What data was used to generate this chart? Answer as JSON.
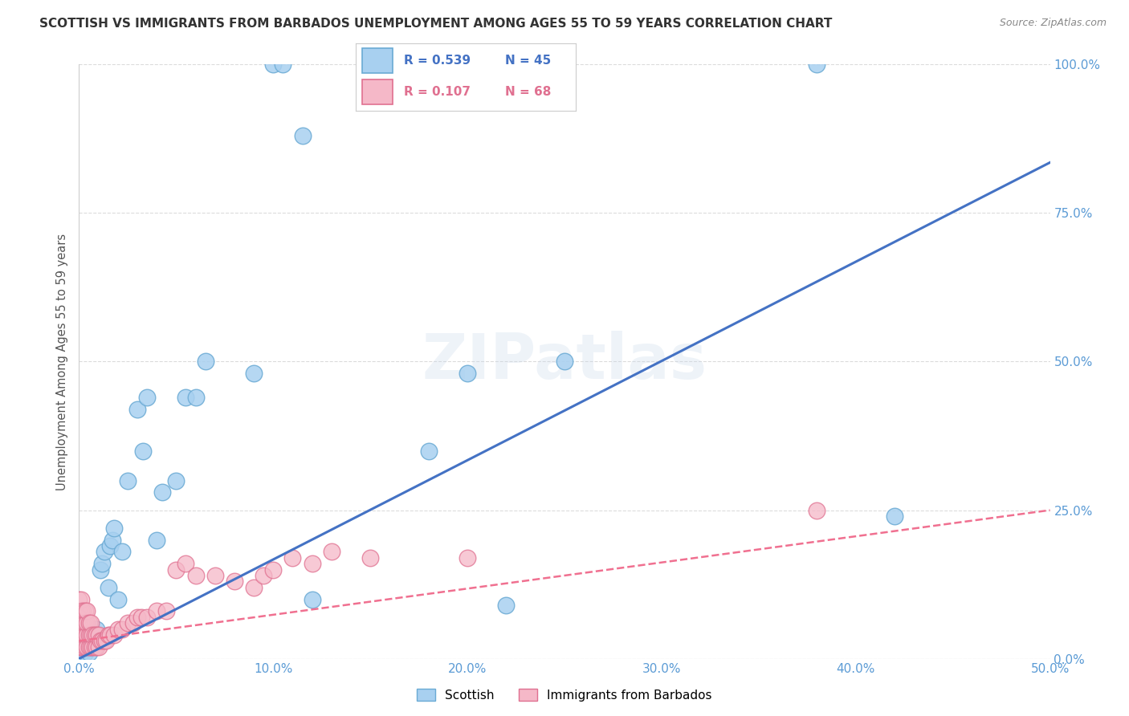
{
  "title": "SCOTTISH VS IMMIGRANTS FROM BARBADOS UNEMPLOYMENT AMONG AGES 55 TO 59 YEARS CORRELATION CHART",
  "source": "Source: ZipAtlas.com",
  "ylabel": "Unemployment Among Ages 55 to 59 years",
  "xlim": [
    0.0,
    0.5
  ],
  "ylim": [
    0.0,
    1.0
  ],
  "xticks": [
    0.0,
    0.1,
    0.2,
    0.3,
    0.4,
    0.5
  ],
  "xtick_labels": [
    "0.0%",
    "10.0%",
    "20.0%",
    "30.0%",
    "40.0%",
    "50.0%"
  ],
  "yticks": [
    0.0,
    0.25,
    0.5,
    0.75,
    1.0
  ],
  "ytick_labels": [
    "0.0%",
    "25.0%",
    "50.0%",
    "75.0%",
    "100.0%"
  ],
  "scottish_color": "#a8d0f0",
  "scottish_edge_color": "#6aaad4",
  "barbados_color": "#f5b8c8",
  "barbados_edge_color": "#e07090",
  "scottish_line_color": "#4472C4",
  "barbados_line_color": "#f07090",
  "R_scottish": 0.539,
  "N_scottish": 45,
  "R_barbados": 0.107,
  "N_barbados": 68,
  "scottish_x": [
    0.001,
    0.001,
    0.002,
    0.002,
    0.003,
    0.003,
    0.004,
    0.004,
    0.005,
    0.005,
    0.006,
    0.007,
    0.008,
    0.009,
    0.01,
    0.011,
    0.012,
    0.013,
    0.015,
    0.016,
    0.017,
    0.018,
    0.02,
    0.022,
    0.025,
    0.03,
    0.033,
    0.035,
    0.04,
    0.043,
    0.05,
    0.055,
    0.06,
    0.065,
    0.09,
    0.1,
    0.105,
    0.115,
    0.12,
    0.18,
    0.2,
    0.22,
    0.25,
    0.38,
    0.42
  ],
  "scottish_y": [
    0.01,
    0.02,
    0.02,
    0.04,
    0.01,
    0.03,
    0.02,
    0.04,
    0.01,
    0.03,
    0.02,
    0.03,
    0.04,
    0.05,
    0.03,
    0.15,
    0.16,
    0.18,
    0.12,
    0.19,
    0.2,
    0.22,
    0.1,
    0.18,
    0.3,
    0.42,
    0.35,
    0.44,
    0.2,
    0.28,
    0.3,
    0.44,
    0.44,
    0.5,
    0.48,
    1.0,
    1.0,
    0.88,
    0.1,
    0.35,
    0.48,
    0.09,
    0.5,
    1.0,
    0.24
  ],
  "barbados_x": [
    0.0,
    0.0,
    0.0,
    0.0,
    0.0,
    0.0,
    0.0,
    0.001,
    0.001,
    0.001,
    0.001,
    0.001,
    0.002,
    0.002,
    0.002,
    0.002,
    0.003,
    0.003,
    0.003,
    0.003,
    0.004,
    0.004,
    0.004,
    0.004,
    0.005,
    0.005,
    0.005,
    0.006,
    0.006,
    0.006,
    0.007,
    0.007,
    0.008,
    0.008,
    0.009,
    0.009,
    0.01,
    0.01,
    0.011,
    0.012,
    0.013,
    0.014,
    0.015,
    0.016,
    0.018,
    0.02,
    0.022,
    0.025,
    0.028,
    0.03,
    0.032,
    0.035,
    0.04,
    0.045,
    0.05,
    0.055,
    0.06,
    0.07,
    0.08,
    0.09,
    0.095,
    0.1,
    0.11,
    0.12,
    0.13,
    0.15,
    0.2,
    0.38
  ],
  "barbados_y": [
    0.02,
    0.04,
    0.06,
    0.08,
    0.1,
    0.03,
    0.07,
    0.02,
    0.04,
    0.06,
    0.08,
    0.1,
    0.02,
    0.04,
    0.06,
    0.08,
    0.02,
    0.04,
    0.06,
    0.08,
    0.02,
    0.04,
    0.06,
    0.08,
    0.02,
    0.04,
    0.06,
    0.02,
    0.04,
    0.06,
    0.02,
    0.04,
    0.02,
    0.04,
    0.02,
    0.04,
    0.02,
    0.04,
    0.03,
    0.03,
    0.03,
    0.03,
    0.04,
    0.04,
    0.04,
    0.05,
    0.05,
    0.06,
    0.06,
    0.07,
    0.07,
    0.07,
    0.08,
    0.08,
    0.15,
    0.16,
    0.14,
    0.14,
    0.13,
    0.12,
    0.14,
    0.15,
    0.17,
    0.16,
    0.18,
    0.17,
    0.17,
    0.25
  ],
  "watermark": "ZIPatlas",
  "background_color": "#ffffff",
  "grid_color": "#d8d8d8",
  "scottish_line_slope": 1.67,
  "scottish_line_intercept": 0.0,
  "barbados_line_slope": 0.44,
  "barbados_line_intercept": 0.03
}
